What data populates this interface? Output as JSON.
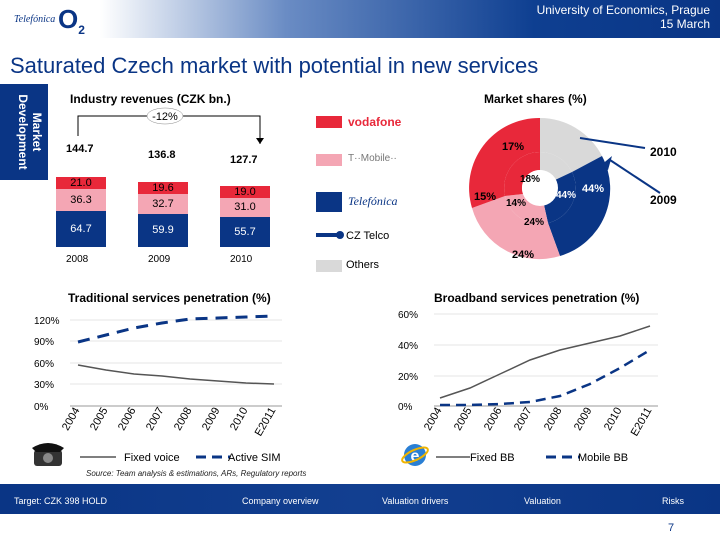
{
  "header": {
    "line1": "University of Economics, Prague",
    "line2": "15 March",
    "logo_telefonica": "Telefónica",
    "logo_o2": "O",
    "logo_o2_sub": "2"
  },
  "title": "Saturated Czech market with potential in new services",
  "sidetab": "Market Development",
  "revenues": {
    "heading": "Industry revenues (CZK bn.)",
    "change_label": "-12%",
    "years": [
      "2008",
      "2009",
      "2010"
    ],
    "totals": [
      "144.7",
      "136.8",
      "127.7"
    ],
    "segments": [
      {
        "year": "2008",
        "top": "21.0",
        "middle": "36.3",
        "bottom": "64.7"
      },
      {
        "year": "2009",
        "top": "19.6",
        "middle": "32.7",
        "bottom": "59.9"
      },
      {
        "year": "2010",
        "top": "19.0",
        "middle": "31.0",
        "bottom": "55.7"
      }
    ],
    "colors": {
      "top": "#e8283a",
      "middle": "#f4a6b4",
      "bottom": "#0a3585"
    }
  },
  "market_shares": {
    "heading": "Market shares (%)",
    "legend": [
      {
        "name": "vodafone",
        "color": "#e8283a"
      },
      {
        "name": "T··Mobile··",
        "color": "#f4a6b4"
      },
      {
        "name": "Telefónica",
        "color": "#0a3585"
      },
      {
        "name": "CZ Telco",
        "color": "#0a3585"
      },
      {
        "name": "Others",
        "color": "#d9d9d9"
      }
    ],
    "year_outer": "2010",
    "year_inner": "2009",
    "outer_labels": [
      "17%",
      "44%",
      "24%",
      "15%"
    ],
    "inner_labels": [
      "18%",
      "44%",
      "24%",
      "14%"
    ]
  },
  "traditional": {
    "heading": "Traditional services penetration (%)",
    "y_ticks": [
      "120%",
      "90%",
      "60%",
      "30%",
      "0%"
    ],
    "x_ticks": [
      "2004",
      "2005",
      "2006",
      "2007",
      "2008",
      "2009",
      "2010",
      "E2011"
    ],
    "legend_fixed": "Fixed voice",
    "legend_sim": "Active SIM"
  },
  "broadband": {
    "heading": "Broadband services penetration (%)",
    "y_ticks": [
      "60%",
      "40%",
      "20%",
      "0%"
    ],
    "x_ticks": [
      "2004",
      "2005",
      "2006",
      "2007",
      "2008",
      "2009",
      "2010",
      "E2011"
    ],
    "legend_fixed": "Fixed BB",
    "legend_mobile": "Mobile BB"
  },
  "source": "Source: Team analysis & estimations, ARs, Regulatory reports",
  "footer": {
    "target": "Target: CZK 398 HOLD",
    "nav": [
      "Company overview",
      "Valuation drivers",
      "Valuation",
      "Risks"
    ]
  },
  "page_number": "7"
}
